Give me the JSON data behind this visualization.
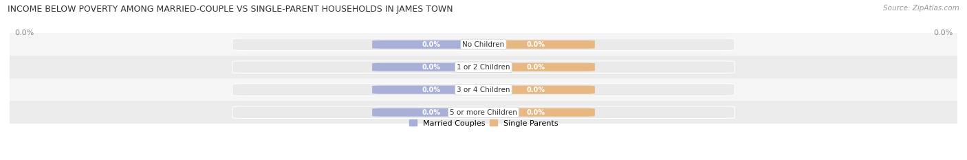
{
  "title": "INCOME BELOW POVERTY AMONG MARRIED-COUPLE VS SINGLE-PARENT HOUSEHOLDS IN JAMES TOWN",
  "source": "Source: ZipAtlas.com",
  "categories": [
    "No Children",
    "1 or 2 Children",
    "3 or 4 Children",
    "5 or more Children"
  ],
  "married_values": [
    0.0,
    0.0,
    0.0,
    0.0
  ],
  "single_values": [
    0.0,
    0.0,
    0.0,
    0.0
  ],
  "married_color": "#A8B0D8",
  "single_color": "#E8B882",
  "bar_bg_color": "#EAEAEA",
  "row_bg_even": "#F5F5F5",
  "row_bg_odd": "#EBEBEB",
  "figsize": [
    14.06,
    2.33
  ],
  "dpi": 100,
  "title_fontsize": 9.0,
  "source_fontsize": 7.5,
  "axis_label_fontsize": 8,
  "bar_label_fontsize": 7,
  "category_fontsize": 7.5,
  "legend_fontsize": 8
}
